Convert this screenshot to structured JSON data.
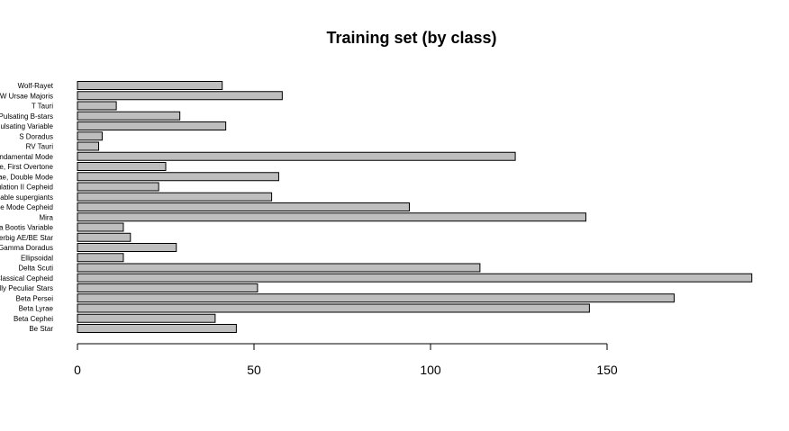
{
  "chart_data": {
    "type": "bar",
    "orientation": "horizontal",
    "title": "Training set (by class)",
    "xlabel": "",
    "ylabel": "",
    "xlim": [
      0,
      190
    ],
    "x_ticks": [
      0,
      50,
      100,
      150
    ],
    "x_tick_labels": [
      "0",
      "50",
      "100",
      "150"
    ],
    "grid": false,
    "bar_color": "#bebebe",
    "bar_edge_color": "#000000",
    "categories": [
      "Be Star",
      "Beta Cephei",
      "Beta Lyrae",
      "Beta Persei",
      "Chemically Peculiar Stars",
      "Classical Cepheid",
      "Delta Scuti",
      "Ellipsoidal",
      "Gamma Doradus",
      "Herbig AE/BE Star",
      "Lambda Bootis Variable",
      "Mira",
      "Multiple Mode Cepheid",
      "Periodically variable supergiants",
      "Population II Cepheid",
      "RR Lyrae, Double Mode",
      "RR Lyrae, First Overtone",
      "RR Lyrae, Fundamental Mode",
      "RV Tauri",
      "S Doradus",
      "Semiregular Pulsating Variable",
      "Slowly Pulsating B-stars",
      "T Tauri",
      "W Ursae Majoris",
      "Wolf-Rayet"
    ],
    "values": [
      45,
      39,
      145,
      169,
      51,
      191,
      114,
      13,
      28,
      15,
      13,
      144,
      94,
      55,
      23,
      57,
      25,
      124,
      6,
      7,
      42,
      29,
      11,
      58,
      41
    ]
  }
}
